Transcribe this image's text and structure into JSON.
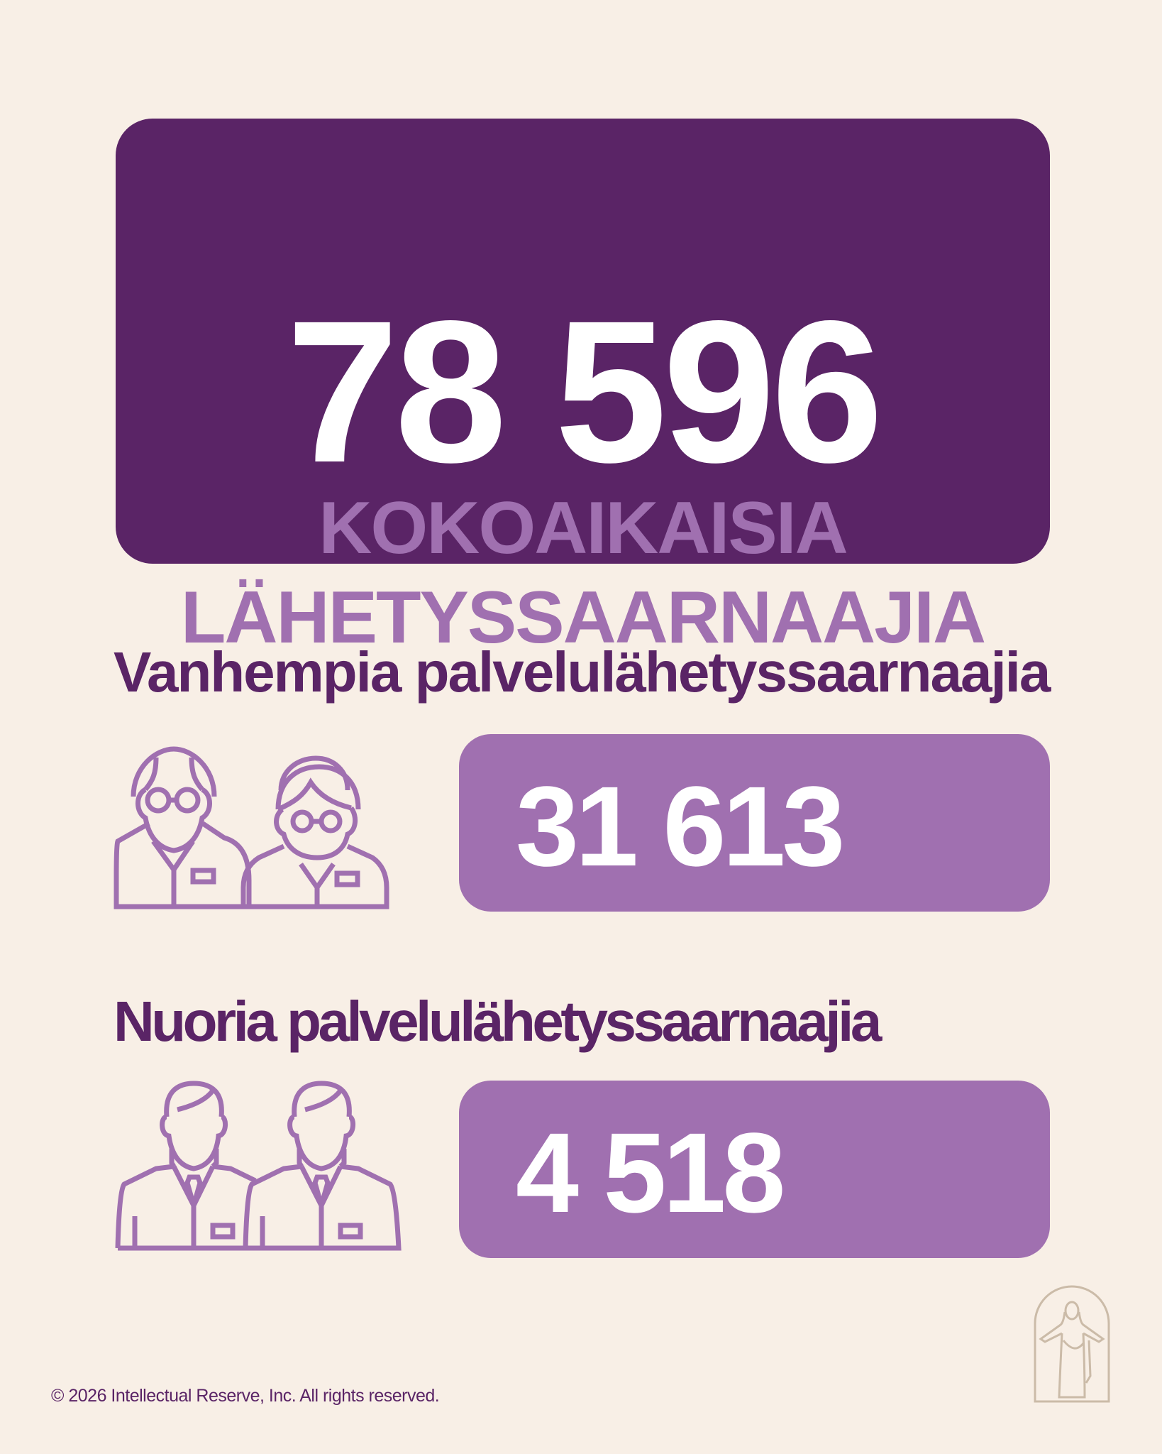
{
  "hero": {
    "total": "78 596",
    "label_line1": "KOKOAIKAISIA",
    "label_line2": "LÄHETYSSAARNAAJIA"
  },
  "senior": {
    "heading": "Vanhempia palvelulähetyssaarnaajia",
    "value": "31 613",
    "icon": "senior-couple-icon"
  },
  "young": {
    "heading": "Nuoria palvelulähetyssaarnaajia",
    "value": "4 518",
    "icon": "young-missionaries-icon"
  },
  "footer": {
    "copyright": "© 2026 Intellectual Reserve, Inc. All rights reserved.",
    "logo": "christus-logo"
  },
  "colors": {
    "background": "#f8efe6",
    "primary_purple": "#5a2466",
    "light_purple": "#a070b0",
    "logo_beige": "#cbbba8"
  }
}
